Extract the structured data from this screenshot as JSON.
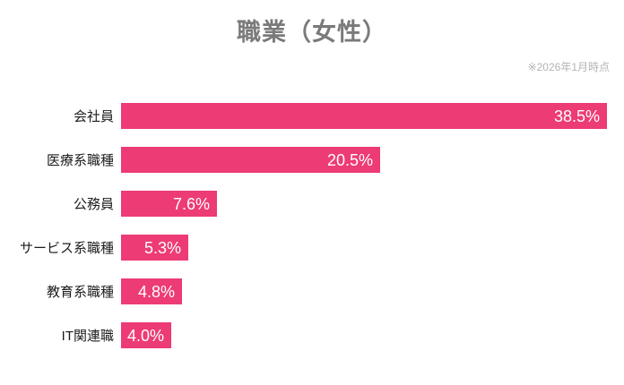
{
  "chart_data": {
    "type": "bar",
    "orientation": "horizontal",
    "title": "職業（女性）",
    "note": "※2026年1月時点",
    "categories": [
      "会社員",
      "医療系職種",
      "公務員",
      "サービス系職種",
      "教育系職種",
      "IT関連職"
    ],
    "values": [
      38.5,
      20.5,
      7.6,
      5.3,
      4.8,
      4.0
    ],
    "value_labels": [
      "38.5%",
      "20.5%",
      "7.6%",
      "5.3%",
      "4.8%",
      "4.0%"
    ],
    "xlim": [
      0,
      38.5
    ],
    "grid": false,
    "legend": "none",
    "bar_color": "#ed3b75",
    "value_text_color": "#ffffff",
    "title_color": "#7a7a7a",
    "note_color": "#b3b3b3",
    "label_color": "#1c1c1c",
    "background_color": "#ffffff"
  }
}
